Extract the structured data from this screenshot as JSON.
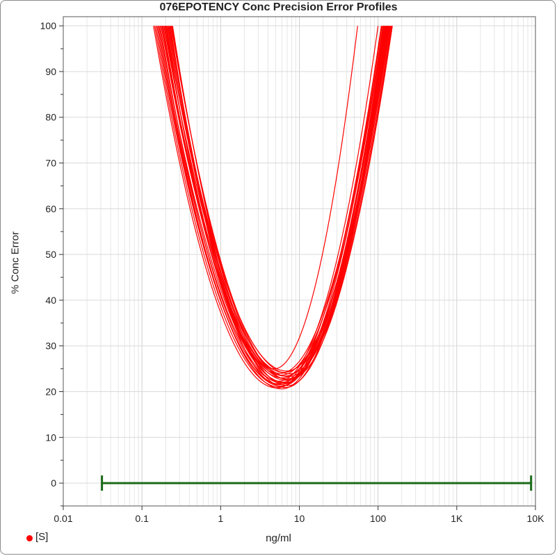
{
  "chart_data": {
    "type": "line",
    "title": "076EPOTENCY Conc Precision Error Profiles",
    "xlabel": "ng/ml",
    "ylabel": "% Conc Error",
    "x_scale": "log",
    "xlim": [
      0.01,
      10000
    ],
    "ylim": [
      -5,
      102
    ],
    "x_tick_labels": [
      "0.01",
      "0.1",
      "1",
      "10",
      "100",
      "1K",
      "10K"
    ],
    "x_tick_values": [
      0.01,
      0.1,
      1,
      10,
      100,
      1000,
      10000
    ],
    "y_tick_values": [
      0,
      10,
      20,
      30,
      40,
      50,
      60,
      70,
      80,
      90,
      100
    ],
    "y_tick_labels": [
      "0",
      "10",
      "20",
      "30",
      "40",
      "50",
      "60",
      "70",
      "80",
      "90",
      "100"
    ],
    "grid": true,
    "legend": {
      "position": "bottom-left",
      "entries": [
        {
          "label": "[S]",
          "color": "#ff0000"
        }
      ]
    },
    "series_color": "#ff0000",
    "range_bar": {
      "x_start": 0.031,
      "x_end": 8800,
      "y": 0,
      "color": "#1a6b1a"
    },
    "profile_family": {
      "note_values": "each curve: x where error reaches 100 on low side, x of minimum, minimum error, x where error reaches 100 on high side",
      "curves": [
        [
          0.14,
          5.2,
          20.8,
          110
        ],
        [
          0.145,
          5.6,
          21.0,
          115
        ],
        [
          0.15,
          6.0,
          21.2,
          120
        ],
        [
          0.155,
          5.8,
          21.5,
          125
        ],
        [
          0.16,
          6.3,
          21.8,
          130
        ],
        [
          0.165,
          6.6,
          22.0,
          135
        ],
        [
          0.17,
          5.5,
          22.3,
          100
        ],
        [
          0.175,
          6.8,
          22.5,
          140
        ],
        [
          0.18,
          7.0,
          22.8,
          145
        ],
        [
          0.185,
          6.1,
          23.0,
          128
        ],
        [
          0.19,
          7.3,
          23.3,
          150
        ],
        [
          0.195,
          5.9,
          23.6,
          118
        ],
        [
          0.2,
          7.5,
          23.9,
          152
        ],
        [
          0.205,
          6.4,
          24.2,
          136
        ],
        [
          0.21,
          6.9,
          24.5,
          142
        ],
        [
          0.215,
          6.2,
          22.1,
          122
        ],
        [
          0.22,
          7.1,
          21.3,
          133
        ],
        [
          0.225,
          6.7,
          20.9,
          126
        ],
        [
          0.23,
          5.4,
          21.7,
          112
        ],
        [
          0.235,
          7.4,
          22.6,
          148
        ],
        [
          0.24,
          6.5,
          23.4,
          138
        ],
        [
          0.245,
          5.7,
          24.0,
          116
        ],
        [
          0.16,
          6.0,
          20.6,
          124
        ],
        [
          0.18,
          6.6,
          21.9,
          131
        ],
        [
          0.2,
          4.8,
          25.0,
          55
        ]
      ]
    }
  }
}
